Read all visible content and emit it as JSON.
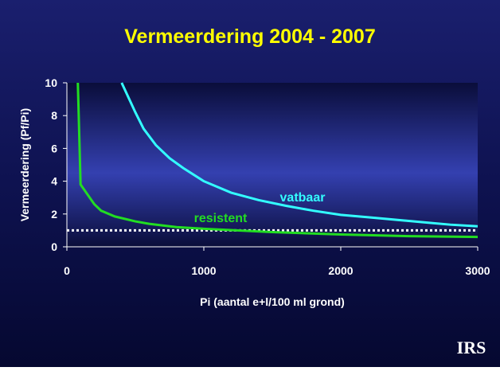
{
  "chart_data": {
    "type": "line",
    "title": "Vermeerdering 2004 - 2007",
    "x_label": "Pi (aantal e+l/100 ml grond)",
    "y_label": "Vermeerdering (Pf/Pi)",
    "xlim": [
      0,
      3000
    ],
    "xticks": [
      0,
      1000,
      2000,
      3000
    ],
    "ylim": [
      0,
      10
    ],
    "yticks": [
      0,
      2,
      4,
      6,
      8,
      10
    ],
    "reference_line": {
      "value": 1,
      "color": "#ffffff"
    },
    "series": [
      {
        "name": "vatbaar",
        "color": "#33ffff",
        "x": [
          400,
          500,
          560,
          650,
          750,
          850,
          1000,
          1200,
          1400,
          1600,
          1800,
          2000,
          2200,
          2400,
          2600,
          2800,
          3000
        ],
        "values": [
          10,
          8.2,
          7.2,
          6.2,
          5.4,
          4.8,
          4.0,
          3.3,
          2.85,
          2.5,
          2.2,
          1.95,
          1.8,
          1.65,
          1.5,
          1.35,
          1.25
        ]
      },
      {
        "name": "resistent",
        "color": "#22dd22",
        "x": [
          80,
          100,
          200,
          250,
          350,
          500,
          600,
          800,
          1000,
          1500,
          2000,
          2500,
          3000
        ],
        "values": [
          10,
          3.8,
          2.6,
          2.2,
          1.85,
          1.55,
          1.4,
          1.2,
          1.1,
          0.9,
          0.75,
          0.65,
          0.6
        ]
      }
    ],
    "logo": "IRS"
  }
}
